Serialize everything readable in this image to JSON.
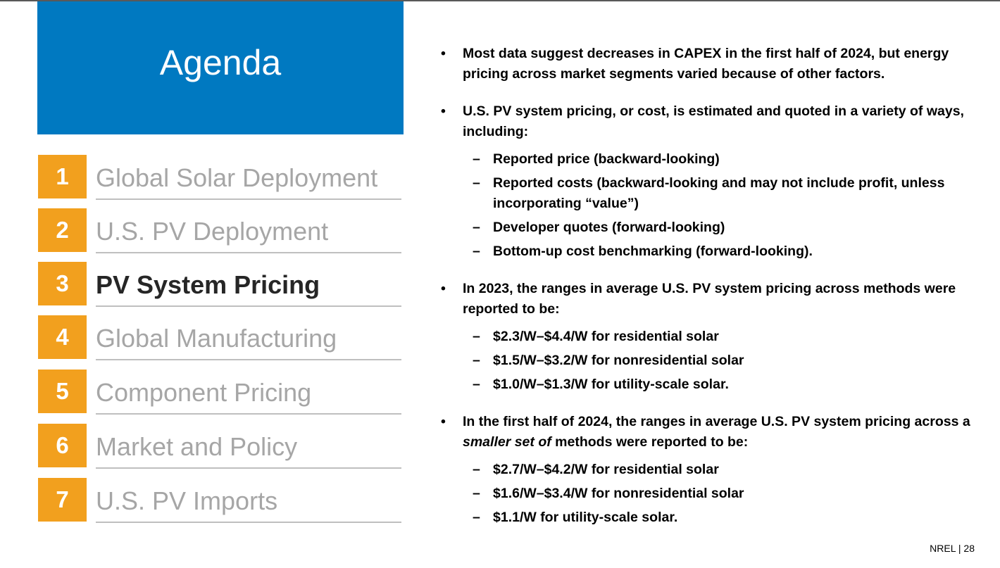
{
  "agenda": {
    "title": "Agenda",
    "items": [
      {
        "number": "1",
        "label": "Global Solar Deployment",
        "active": false
      },
      {
        "number": "2",
        "label": "U.S. PV Deployment",
        "active": false
      },
      {
        "number": "3",
        "label": "PV System Pricing",
        "active": true
      },
      {
        "number": "4",
        "label": "Global Manufacturing",
        "active": false
      },
      {
        "number": "5",
        "label": "Component Pricing",
        "active": false
      },
      {
        "number": "6",
        "label": "Market and Policy",
        "active": false
      },
      {
        "number": "7",
        "label": "U.S. PV Imports",
        "active": false
      }
    ]
  },
  "content": {
    "bullet_marker": "•",
    "dash_marker": "–",
    "bullets": [
      {
        "text": "Most data suggest decreases in CAPEX in the first half of 2024, but energy pricing across market segments varied because of other factors."
      },
      {
        "text": "U.S. PV system pricing, or cost, is estimated and quoted in a variety of ways, including:",
        "subs": [
          "Reported price (backward-looking)",
          "Reported costs (backward-looking and may not include profit, unless incorporating “value”)",
          "Developer quotes (forward-looking)",
          "Bottom-up cost benchmarking (forward-looking)."
        ]
      },
      {
        "text": "In 2023, the ranges in average U.S. PV system pricing across methods were reported to be:",
        "subs": [
          "$2.3/W–$4.4/W for residential solar",
          "$1.5/W–$3.2/W for nonresidential solar",
          "$1.0/W–$1.3/W for utility-scale solar."
        ]
      },
      {
        "text_before": "In the first half of 2024, the ranges in average U.S. PV system pricing across a ",
        "text_italic": "smaller set of",
        "text_after": " methods were reported to be:",
        "subs": [
          "$2.7/W–$4.2/W for residential solar",
          "$1.6/W–$3.4/W for nonresidential solar",
          "$1.1/W for utility-scale solar."
        ]
      }
    ]
  },
  "footer": {
    "org": "NREL",
    "separator": "|",
    "page_number": "28"
  },
  "colors": {
    "agenda_blue": "#0079c1",
    "number_orange": "#f2a01e",
    "inactive_gray": "#a6a6a6",
    "active_text": "#262626"
  }
}
